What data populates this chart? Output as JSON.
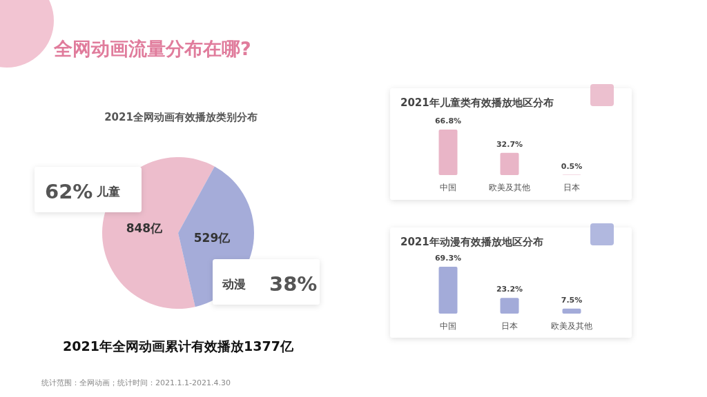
{
  "chart_data": [
    {
      "type": "pie",
      "title": "2021全网动画有效播放类别分布",
      "categories": [
        "儿童",
        "动漫"
      ],
      "values": [
        848,
        529
      ],
      "value_labels": [
        "848亿",
        "529亿"
      ],
      "colors": [
        "#edbdcc",
        "#a5acd9"
      ],
      "annotations": [
        "62%",
        "38%",
        "全网动画流量分布在哪?",
        "2021年全网动画累计有效播放1377亿",
        "统计范围：全网动画；统计时间：2021.1.1-2021.4.30"
      ]
    },
    {
      "type": "bar",
      "title": "2021年儿童类有效播放地区分布",
      "categories": [
        "中国",
        "欧美及其他",
        "日本"
      ],
      "values": [
        66.8,
        32.7,
        0.5
      ],
      "value_labels": [
        "66.8%",
        "32.7%",
        "0.5%"
      ],
      "color": "#e9b5c7"
    },
    {
      "type": "bar",
      "title": "2021年动漫有效播放地区分布",
      "categories": [
        "中国",
        "日本",
        "欧美及其他"
      ],
      "values": [
        69.3,
        23.2,
        7.5
      ],
      "value_labels": [
        "69.3%",
        "23.2%",
        "7.5%"
      ],
      "color": "#a3abd9"
    }
  ]
}
